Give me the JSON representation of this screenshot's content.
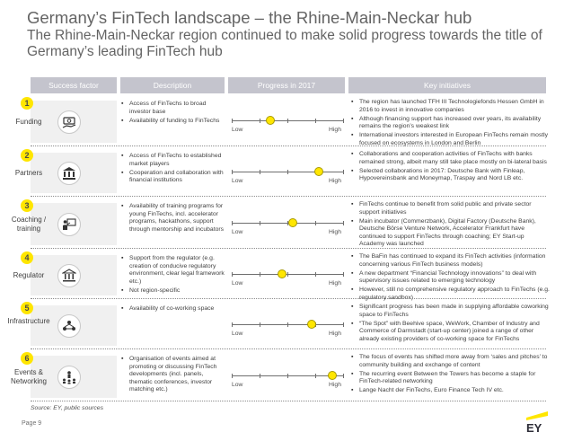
{
  "title": "Germany’s FinTech landscape – the Rhine-Main-Neckar hub",
  "subtitle": "The Rhine-Main-Neckar region continued to make solid progress towards the title of Germany’s leading FinTech hub",
  "headers": {
    "success_factor": "Success factor",
    "description": "Description",
    "progress": "Progress in 2017",
    "key_initiatives": "Key initiatives"
  },
  "scale": {
    "low": "Low",
    "high": "High"
  },
  "rows": [
    {
      "number": "1",
      "factor": "Funding",
      "icon": "money-hand-icon",
      "progress": 0.35,
      "description": [
        "Access of FinTechs to broad investor base",
        "Availability of funding to FinTechs"
      ],
      "initiatives": [
        "The region has launched TFH III Technologiefonds Hessen GmbH in 2016 to invest in innovative companies",
        "Although financing support has increased over years, its availability remains the region’s weakest link",
        "International investors interested in European FinTechs remain mostly focused on ecosystems in London and Berlin"
      ]
    },
    {
      "number": "2",
      "factor": "Partners",
      "icon": "bank-building-icon",
      "progress": 0.78,
      "description": [
        "Access of FinTechs to established market players",
        "Cooperation and collaboration with financial institutions"
      ],
      "initiatives": [
        "Collaborations and cooperation activities of FinTechs with banks remained strong, albeit many still take place mostly on bi-lateral basis",
        "Selected collaborations in 2017: Deutsche Bank with Finleap, Hypovereinsbank and Moneymap, Traspay and Nord LB etc."
      ]
    },
    {
      "number": "3",
      "factor": "Coaching / training",
      "icon": "coaching-board-icon",
      "progress": 0.55,
      "description": [
        "Availability of training programs for young FinTechs, incl. accelerator programs, hackathons, support through mentorship and incubators"
      ],
      "initiatives": [
        "FinTechs continue to benefit from solid public and private sector support initiatives",
        "Main incubator (Commerzbank), Digital Factory (Deutsche Bank), Deutsche Börse Venture Network, Accelerator Frankfurt have continued to support FinTechs through coaching; EY Start-up Academy was launched"
      ]
    },
    {
      "number": "4",
      "factor": "Regulator",
      "icon": "regulator-building-icon",
      "progress": 0.45,
      "description": [
        "Support from the regulator (e.g. creation of conducive regulatory environment, clear legal framework etc.)",
        "Not region-specific"
      ],
      "initiatives": [
        "The BaFin has continued to expand its FinTech activities (information concerning various FinTech business models)",
        "A new department “Financial Technology innovations” to deal with supervisory issues related to emerging technology",
        "However, still no comprehensive regulatory approach to FinTechs (e.g. regulatory sandbox)"
      ]
    },
    {
      "number": "5",
      "factor": "Infrastructure",
      "icon": "network-people-icon",
      "progress": 0.72,
      "description": [
        "Availability of co-working space"
      ],
      "initiatives": [
        "Significant progress has been made in supplying affordable coworking space to FinTechs",
        "“The Spot” with Beehive space, WeWork, Chamber of Industry and Commerce of Darmstadt (start-up center) joined a range of other already existing providers of co-working space for FinTechs"
      ]
    },
    {
      "number": "6",
      "factor": "Events & Networking",
      "icon": "speaker-audience-icon",
      "progress": 0.9,
      "description": [
        "Organisation of events aimed at promoting or discussing FinTech developments (incl. panels, thematic conferences, investor matching etc.)"
      ],
      "initiatives": [
        "The focus of events has shifted more away from ‘sales and pitches’ to community building and exchange of content",
        "The recurring event Between the Towers has become a staple for FinTech-related networking",
        "Lange Nacht der FinTechs, Euro Finance Tech IV etc."
      ]
    }
  ],
  "source": "Source: EY, public sources",
  "page": "Page 9",
  "logo": "EY",
  "colors": {
    "accent": "#ffe600",
    "header": "#c4c4cd",
    "title": "#646464"
  }
}
